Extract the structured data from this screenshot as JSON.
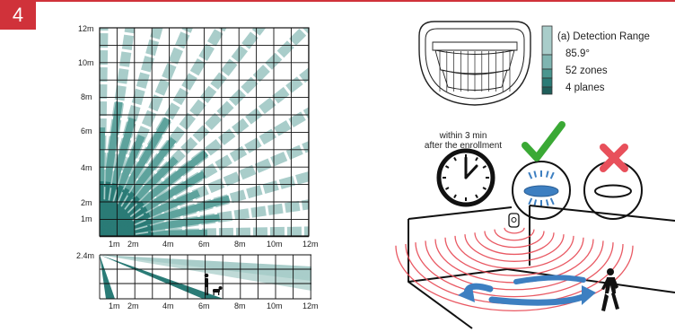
{
  "page": {
    "badge_number": "4"
  },
  "top_view": {
    "x_ticks": [
      "1m",
      "2m",
      "4m",
      "6m",
      "8m",
      "10m",
      "12m"
    ],
    "y_ticks": [
      "12m",
      "10m",
      "8m",
      "6m",
      "4m",
      "2m",
      "1m"
    ]
  },
  "side_view": {
    "height_label": "2.4m",
    "x_ticks": [
      "1m",
      "2m",
      "4m",
      "6m",
      "8m",
      "10m",
      "12m"
    ]
  },
  "legend": {
    "title": "(a) Detection Range",
    "angle": "85.9°",
    "zones": "52 zones",
    "planes": "4 planes"
  },
  "enrollment": {
    "line1": "within 3 min",
    "line2": "after the enrollment"
  },
  "colors": {
    "accent_red": "#d0323a",
    "zone_light": "#a9cdca",
    "zone_dark": "#2a7b76",
    "check_green": "#3aa935",
    "cross_red": "#e8505b",
    "wave_red": "#e8505b",
    "arrow_blue": "#3d7fc1"
  },
  "icons": [
    "detector-icon",
    "clock-icon",
    "check-icon",
    "cross-icon",
    "person-icon",
    "dog-icon"
  ]
}
